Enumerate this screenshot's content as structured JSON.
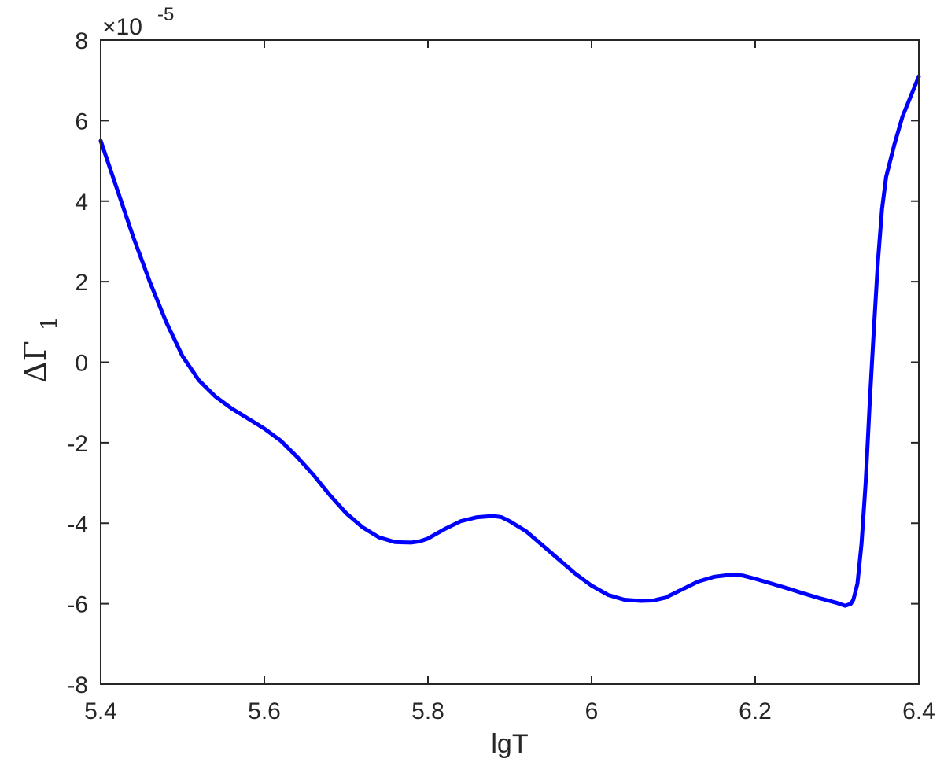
{
  "chart_data": {
    "type": "line",
    "title": "",
    "xlabel": "lgT",
    "ylabel": "ΔΓ",
    "ylabel_sub": "1",
    "y_multiplier": {
      "prefix": "×10",
      "exponent": "-5"
    },
    "xlim": [
      5.4,
      6.4
    ],
    "ylim": [
      -8,
      8
    ],
    "xticks": [
      5.4,
      5.6,
      5.8,
      6.0,
      6.2,
      6.4
    ],
    "xtick_labels": [
      "5.4",
      "5.6",
      "5.8",
      "6",
      "6.2",
      "6.4"
    ],
    "yticks": [
      -8,
      -6,
      -4,
      -2,
      0,
      2,
      4,
      6,
      8
    ],
    "ytick_labels": [
      "-8",
      "-6",
      "-4",
      "-2",
      "0",
      "2",
      "4",
      "6",
      "8"
    ],
    "grid": false,
    "colors": {
      "line": "#0000ff",
      "axes": "#262626"
    },
    "series": [
      {
        "color": "#0000ff",
        "x": [
          5.4,
          5.42,
          5.44,
          5.46,
          5.48,
          5.5,
          5.52,
          5.54,
          5.56,
          5.58,
          5.6,
          5.62,
          5.64,
          5.66,
          5.68,
          5.7,
          5.72,
          5.74,
          5.76,
          5.78,
          5.79,
          5.8,
          5.82,
          5.84,
          5.86,
          5.88,
          5.89,
          5.9,
          5.92,
          5.94,
          5.96,
          5.98,
          6.0,
          6.02,
          6.04,
          6.06,
          6.075,
          6.09,
          6.11,
          6.13,
          6.15,
          6.17,
          6.185,
          6.2,
          6.22,
          6.24,
          6.26,
          6.28,
          6.3,
          6.31,
          6.317,
          6.32,
          6.325,
          6.33,
          6.335,
          6.34,
          6.345,
          6.35,
          6.355,
          6.36,
          6.37,
          6.38,
          6.39,
          6.4
        ],
        "y": [
          5.5,
          4.3,
          3.1,
          2.0,
          1.0,
          0.15,
          -0.45,
          -0.85,
          -1.15,
          -1.4,
          -1.65,
          -1.95,
          -2.35,
          -2.8,
          -3.3,
          -3.75,
          -4.1,
          -4.35,
          -4.47,
          -4.48,
          -4.45,
          -4.38,
          -4.15,
          -3.95,
          -3.85,
          -3.82,
          -3.85,
          -3.95,
          -4.2,
          -4.55,
          -4.9,
          -5.25,
          -5.55,
          -5.78,
          -5.9,
          -5.93,
          -5.92,
          -5.85,
          -5.65,
          -5.45,
          -5.33,
          -5.28,
          -5.3,
          -5.38,
          -5.5,
          -5.62,
          -5.75,
          -5.87,
          -5.98,
          -6.05,
          -6.0,
          -5.9,
          -5.5,
          -4.5,
          -3.0,
          -1.0,
          0.8,
          2.5,
          3.8,
          4.6,
          5.4,
          6.1,
          6.6,
          7.1
        ]
      }
    ]
  }
}
